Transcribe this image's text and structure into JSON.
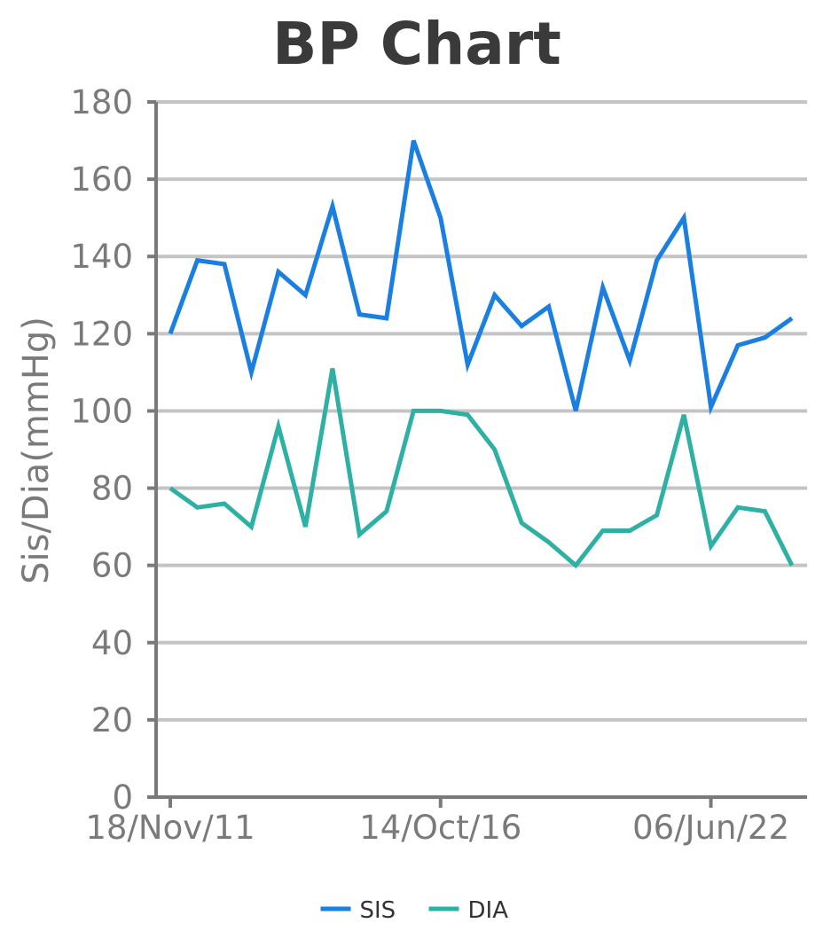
{
  "chart_data": {
    "type": "line",
    "title": "BP Chart",
    "ylabel": "Sis/Dia(mmHg)",
    "xlabel": "",
    "ylim": [
      0,
      180
    ],
    "yticks": [
      0,
      20,
      40,
      60,
      80,
      100,
      120,
      140,
      160,
      180
    ],
    "grid": true,
    "legend": "bottom",
    "point_count": 24,
    "x_tick_labels": [
      {
        "index": 0,
        "label": "18/Nov/11"
      },
      {
        "index": 10,
        "label": "14/Oct/16"
      },
      {
        "index": 20,
        "label": "06/Jun/22"
      }
    ],
    "series": [
      {
        "name": "SIS",
        "color": "#1a7fe0",
        "values": [
          120,
          139,
          138,
          110,
          136,
          130,
          153,
          125,
          124,
          170,
          150,
          112,
          130,
          122,
          127,
          100,
          132,
          113,
          139,
          150,
          101,
          117,
          119,
          124
        ]
      },
      {
        "name": "DIA",
        "color": "#2fb0a4",
        "values": [
          80,
          75,
          76,
          70,
          96,
          70,
          111,
          68,
          74,
          100,
          100,
          99,
          90,
          71,
          66,
          60,
          69,
          69,
          73,
          99,
          65,
          75,
          74,
          60
        ]
      }
    ]
  }
}
